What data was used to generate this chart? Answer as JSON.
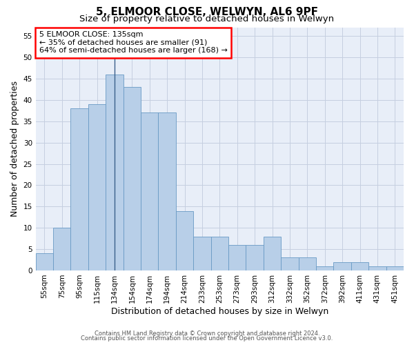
{
  "title1": "5, ELMOOR CLOSE, WELWYN, AL6 9PF",
  "title2": "Size of property relative to detached houses in Welwyn",
  "xlabel": "Distribution of detached houses by size in Welwyn",
  "ylabel": "Number of detached properties",
  "categories": [
    "55sqm",
    "75sqm",
    "95sqm",
    "115sqm",
    "134sqm",
    "154sqm",
    "174sqm",
    "194sqm",
    "214sqm",
    "233sqm",
    "253sqm",
    "273sqm",
    "293sqm",
    "312sqm",
    "332sqm",
    "352sqm",
    "372sqm",
    "392sqm",
    "411sqm",
    "431sqm",
    "451sqm"
  ],
  "values": [
    4,
    10,
    38,
    39,
    46,
    43,
    37,
    37,
    14,
    8,
    8,
    6,
    6,
    8,
    3,
    3,
    1,
    2,
    2,
    1,
    1
  ],
  "bar_color": "#b8cfe8",
  "bar_edge_color": "#6899c4",
  "highlight_index": 4,
  "highlight_line_color": "#3a5f8a",
  "annotation_text": "5 ELMOOR CLOSE: 135sqm\n← 35% of detached houses are smaller (91)\n64% of semi-detached houses are larger (168) →",
  "annotation_box_color": "white",
  "annotation_box_edge": "red",
  "ylim": [
    0,
    57
  ],
  "yticks": [
    0,
    5,
    10,
    15,
    20,
    25,
    30,
    35,
    40,
    45,
    50,
    55
  ],
  "footer1": "Contains HM Land Registry data © Crown copyright and database right 2024.",
  "footer2": "Contains public sector information licensed under the Open Government Licence v3.0.",
  "bg_color": "#e8eef8",
  "grid_color": "#c5cfe0",
  "title_fontsize": 11,
  "subtitle_fontsize": 9.5,
  "tick_fontsize": 7.5,
  "ylabel_fontsize": 9,
  "xlabel_fontsize": 9,
  "footer_fontsize": 6,
  "annotation_fontsize": 8
}
